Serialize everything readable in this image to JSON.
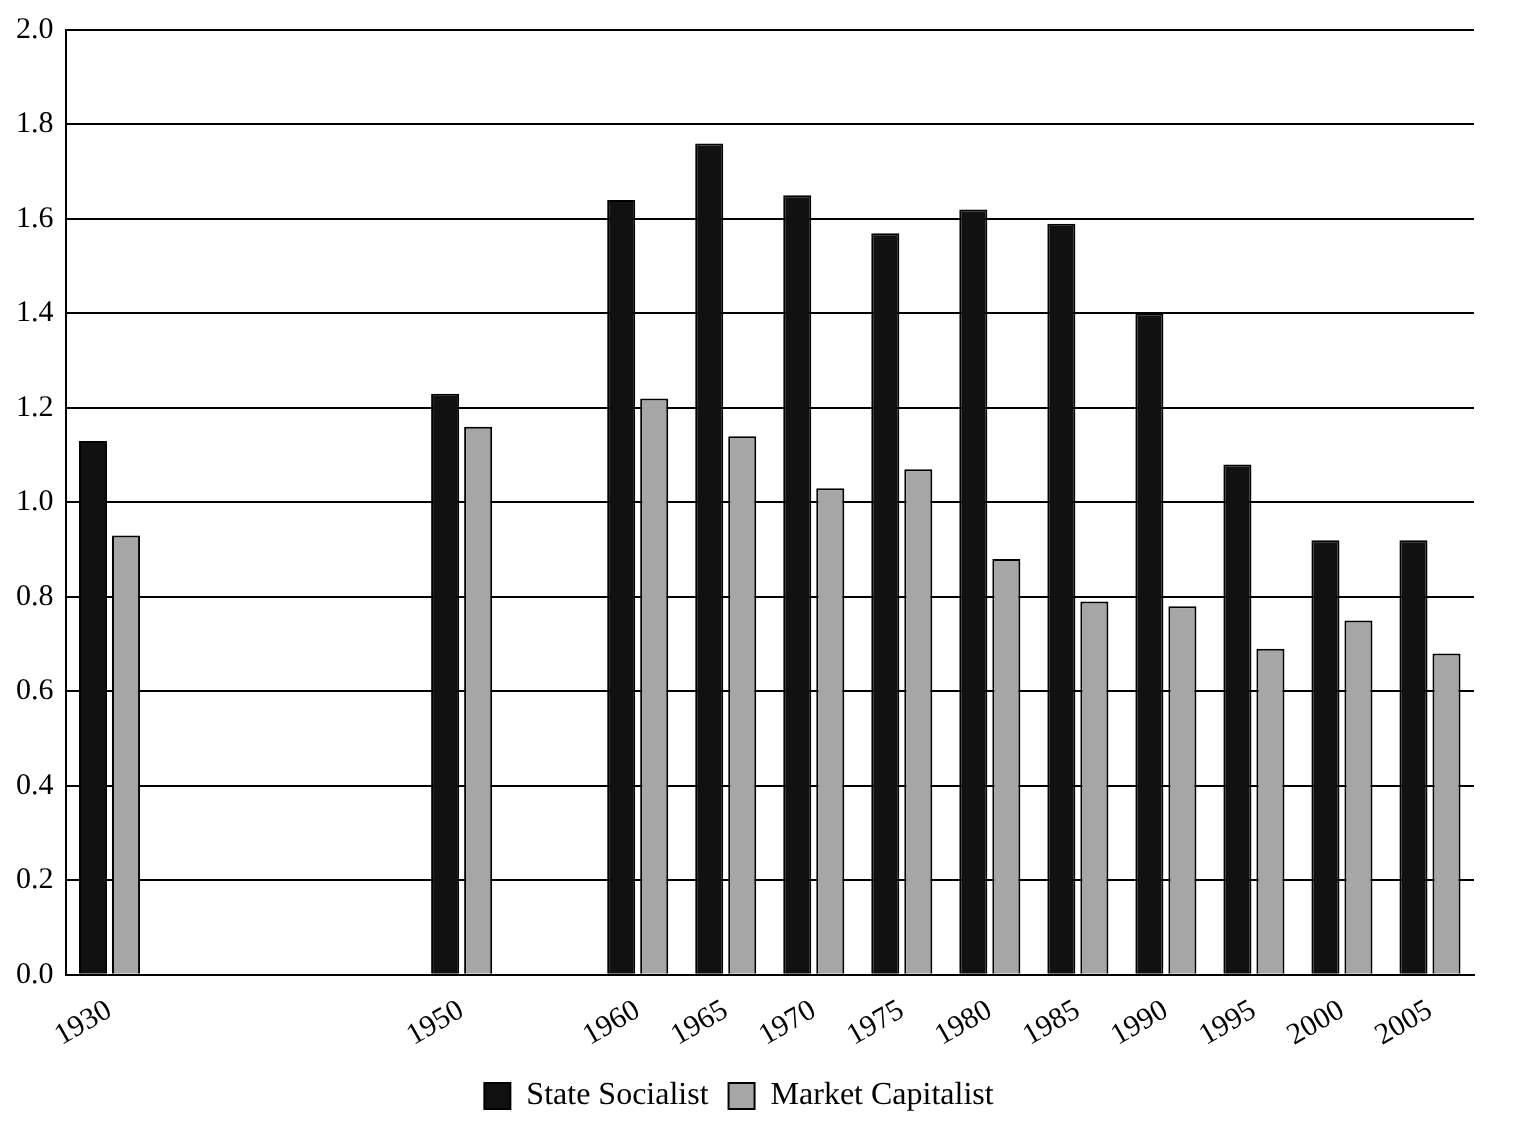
{
  "chart_data": {
    "type": "bar",
    "categories": [
      "1930",
      null,
      null,
      null,
      "1950",
      null,
      "1960",
      "1965",
      "1970",
      "1975",
      "1980",
      "1985",
      "1990",
      "1995",
      "2000",
      "2005"
    ],
    "series": [
      {
        "name": "State Socialist",
        "color": "#111111",
        "values": [
          1.13,
          null,
          null,
          null,
          1.23,
          null,
          1.64,
          1.76,
          1.65,
          1.57,
          1.62,
          1.59,
          1.4,
          1.08,
          0.92,
          0.92
        ]
      },
      {
        "name": "Market Capitalist",
        "color": "#a6a6a6",
        "values": [
          0.93,
          null,
          null,
          null,
          1.16,
          null,
          1.22,
          1.14,
          1.03,
          1.07,
          0.88,
          0.79,
          0.78,
          0.69,
          0.75,
          0.68
        ]
      }
    ],
    "ylim": [
      0,
      2.0
    ],
    "yticks": [
      {
        "value": 0,
        "label": "0.0"
      },
      {
        "value": 0.2,
        "label": "0.2"
      },
      {
        "value": 0.4,
        "label": "0.4"
      },
      {
        "value": 0.6,
        "label": "0.6"
      },
      {
        "value": 0.8,
        "label": "0.8"
      },
      {
        "value": 1.0,
        "label": "1.0"
      },
      {
        "value": 1.2,
        "label": "1.2"
      },
      {
        "value": 1.4,
        "label": "1.4"
      },
      {
        "value": 1.6,
        "label": "1.6"
      },
      {
        "value": 1.8,
        "label": "1.8"
      },
      {
        "value": 2.0,
        "label": "2.0"
      }
    ],
    "grid": "y",
    "legend": "bottom"
  }
}
